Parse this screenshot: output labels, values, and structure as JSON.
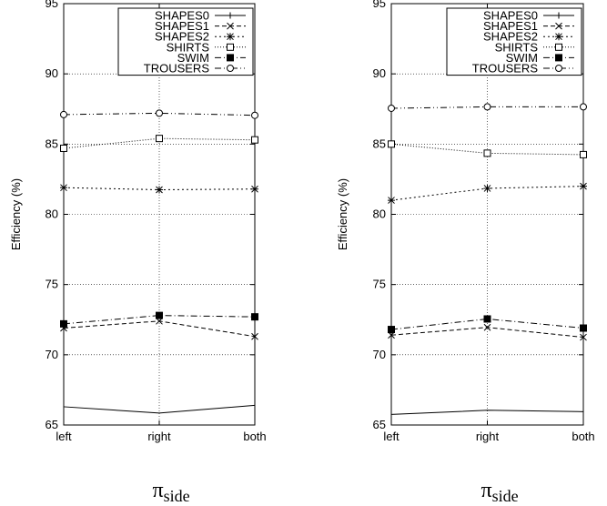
{
  "chart_data": [
    {
      "type": "line",
      "categories": [
        "left",
        "right",
        "both"
      ],
      "ylabel": "Efficiency (%)",
      "xlabel": {
        "symbol": "π",
        "subscript": "side"
      },
      "ylim": [
        65,
        95
      ],
      "yticks": [
        65,
        70,
        75,
        80,
        85,
        90,
        95
      ],
      "grid": true,
      "legend_position": "top-right",
      "series": [
        {
          "name": "SHAPES0",
          "values": [
            66.3,
            65.85,
            66.4
          ],
          "marker": "none",
          "dash": "solid"
        },
        {
          "name": "SHAPES1",
          "values": [
            71.9,
            72.4,
            71.3
          ],
          "marker": "x",
          "dash": "dashed"
        },
        {
          "name": "SHAPES2",
          "values": [
            81.9,
            81.75,
            81.8
          ],
          "marker": "star",
          "dash": "dotted"
        },
        {
          "name": "SHIRTS",
          "values": [
            84.7,
            85.4,
            85.3
          ],
          "marker": "square",
          "dash": "fine-dotted"
        },
        {
          "name": "SWIM",
          "values": [
            72.2,
            72.8,
            72.7
          ],
          "marker": "filled-square",
          "dash": "dashdot"
        },
        {
          "name": "TROUSERS",
          "values": [
            87.1,
            87.2,
            87.05
          ],
          "marker": "circle",
          "dash": "dashdotdot"
        }
      ]
    },
    {
      "type": "line",
      "categories": [
        "left",
        "right",
        "both"
      ],
      "ylabel": "Efficiency (%)",
      "xlabel": {
        "symbol": "π",
        "subscript": "side"
      },
      "ylim": [
        65,
        95
      ],
      "yticks": [
        65,
        70,
        75,
        80,
        85,
        90,
        95
      ],
      "grid": true,
      "legend_position": "top-right",
      "series": [
        {
          "name": "SHAPES0",
          "values": [
            65.75,
            66.05,
            65.95
          ],
          "marker": "none",
          "dash": "solid"
        },
        {
          "name": "SHAPES1",
          "values": [
            71.4,
            71.95,
            71.25
          ],
          "marker": "x",
          "dash": "dashed"
        },
        {
          "name": "SHAPES2",
          "values": [
            81.0,
            81.85,
            82.0
          ],
          "marker": "star",
          "dash": "dotted"
        },
        {
          "name": "SHIRTS",
          "values": [
            85.0,
            84.35,
            84.25
          ],
          "marker": "square",
          "dash": "fine-dotted"
        },
        {
          "name": "SWIM",
          "values": [
            71.8,
            72.55,
            71.9
          ],
          "marker": "filled-square",
          "dash": "dashdot"
        },
        {
          "name": "TROUSERS",
          "values": [
            87.55,
            87.65,
            87.65
          ],
          "marker": "circle",
          "dash": "dashdotdot"
        }
      ]
    }
  ]
}
